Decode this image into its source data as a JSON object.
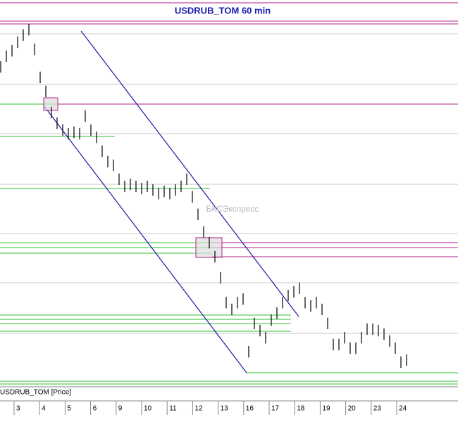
{
  "chart_data": {
    "type": "ohlc",
    "title": "USDRUB_TOM 60 min",
    "watermark": "БКСЭкспресс",
    "series_label": "USDRUB_TOM [Price]",
    "categories": [
      "3",
      "4",
      "5",
      "6",
      "9",
      "10",
      "11",
      "12",
      "13",
      "16",
      "17",
      "18",
      "19",
      "20",
      "23",
      "24"
    ],
    "ylim": [
      0,
      100
    ],
    "color": "#000000",
    "highs": [
      89.8,
      92.8,
      94.3,
      96.7,
      98.7,
      100.2,
      94.7,
      86.9,
      83.0,
      77.1,
      74.1,
      72.2,
      71.2,
      71.6,
      71.2,
      76.1,
      72.2,
      70.2,
      66.3,
      63.4,
      62.4,
      58.5,
      56.5,
      57.1,
      56.5,
      55.9,
      56.5,
      55.5,
      54.5,
      55.1,
      54.5,
      55.5,
      56.5,
      58.5,
      53.6,
      48.7,
      43.8,
      40.8,
      36.9,
      31.0,
      24.1,
      22.2,
      24.1,
      25.1,
      10.4,
      18.3,
      16.3,
      14.3,
      19.2,
      21.2,
      24.1,
      26.1,
      27.1,
      28.1,
      24.1,
      23.2,
      24.1,
      22.2,
      18.3,
      12.4,
      12.4,
      14.3,
      11.4,
      11.4,
      14.3,
      16.7,
      16.7,
      16.3,
      15.3,
      13.4,
      11.4,
      7.5,
      8.1
    ],
    "lows": [
      86.6,
      89.6,
      91.1,
      93.5,
      95.5,
      97.0,
      91.5,
      83.7,
      79.8,
      73.9,
      70.9,
      69.0,
      68.0,
      68.4,
      68.0,
      72.9,
      69.0,
      67.0,
      63.1,
      60.2,
      59.2,
      55.3,
      53.3,
      53.9,
      53.3,
      52.7,
      53.3,
      52.3,
      51.3,
      51.9,
      51.3,
      52.3,
      53.3,
      55.3,
      50.4,
      45.5,
      40.6,
      37.6,
      33.7,
      27.8,
      20.9,
      19.0,
      20.9,
      21.9,
      7.2,
      15.1,
      13.1,
      11.1,
      16.0,
      18.0,
      20.9,
      22.9,
      23.9,
      24.9,
      20.9,
      20.0,
      20.9,
      19.0,
      15.1,
      9.2,
      9.2,
      11.1,
      8.2,
      8.2,
      11.1,
      13.5,
      13.5,
      13.1,
      12.1,
      10.2,
      8.2,
      4.3,
      4.9
    ]
  }
}
